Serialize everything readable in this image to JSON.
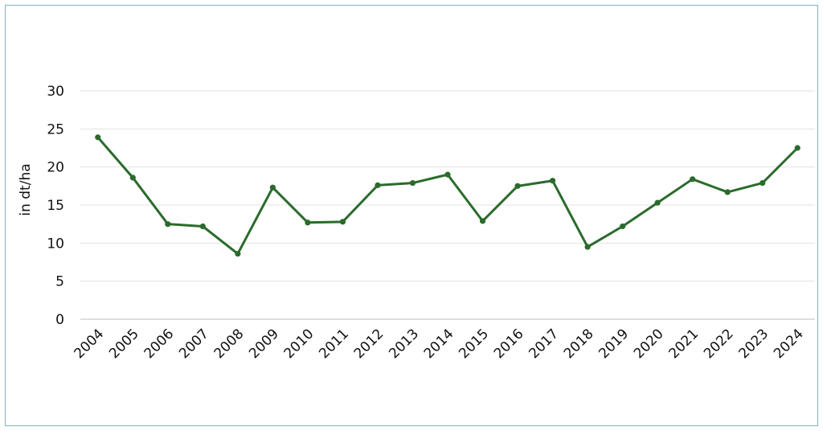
{
  "chart_data": {
    "type": "line",
    "title": "",
    "xlabel": "",
    "ylabel": "in dt/ha",
    "ylim": [
      0,
      30
    ],
    "yticks": [
      0,
      5,
      10,
      15,
      20,
      25,
      30
    ],
    "grid": true,
    "legend": "none",
    "line_color": "#2a6b2c",
    "categories": [
      "2004",
      "2005",
      "2006",
      "2007",
      "2008",
      "2009",
      "2010",
      "2011",
      "2012",
      "2013",
      "2014",
      "2015",
      "2016",
      "2017",
      "2018",
      "2019",
      "2020",
      "2021",
      "2022",
      "2023",
      "2024"
    ],
    "values": [
      23.9,
      18.6,
      12.5,
      12.2,
      8.6,
      17.3,
      12.7,
      12.8,
      17.6,
      17.9,
      19.0,
      12.9,
      17.5,
      18.2,
      9.5,
      12.2,
      15.3,
      18.4,
      16.7,
      17.9,
      22.5
    ]
  }
}
